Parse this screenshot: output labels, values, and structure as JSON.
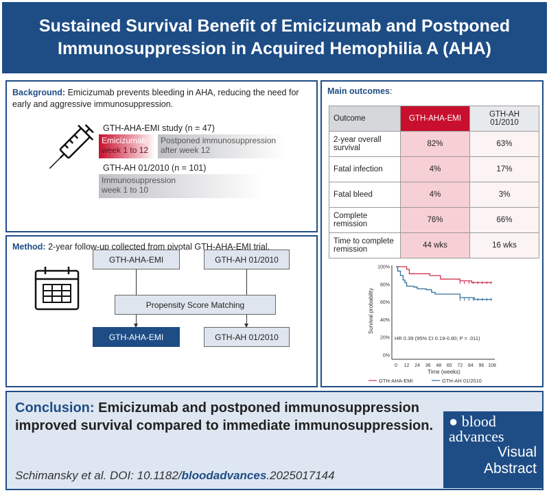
{
  "header": {
    "title": "Sustained Survival Benefit of Emicizumab and Postponed Immunosuppression in Acquired Hemophilia A (AHA)"
  },
  "background": {
    "label": "Background:",
    "text": " Emicizumab prevents bleeding in AHA, reducing the need for early and aggressive immunosuppression.",
    "icon": "syringe-icon",
    "study1": "GTH-AHA-EMI study (n = 47)",
    "bar1a": [
      "Emicizumab",
      "week 1 to 12"
    ],
    "bar1b": [
      "Postponed immunosuppression",
      "after week 12"
    ],
    "study2": "GTH-AH 01/2010 (n = 101)",
    "bar2": [
      "Immunosuppression",
      "week 1 to 10"
    ]
  },
  "method": {
    "label": "Method:",
    "text": " 2-year follow-up collected from pivotal GTH-AHA-EMI trial.",
    "icon": "calendar-icon",
    "box_emi": "GTH-AHA-EMI",
    "box_ah": "GTH-AH 01/2010",
    "box_psm": "Propensity Score Matching",
    "out_emi": "GTH-AHA-EMI",
    "out_ah": "GTH-AH 01/2010"
  },
  "outcomes": {
    "label": "Main outcomes",
    "colon": ":",
    "headers": [
      "Outcome",
      "GTH-AHA-EMI",
      "GTH-AH 01/2010"
    ],
    "rows": [
      [
        "2-year overall survival",
        "82%",
        "63%"
      ],
      [
        "Fatal infection",
        "4%",
        "17%"
      ],
      [
        "Fatal bleed",
        "4%",
        "3%"
      ],
      [
        "Complete remission",
        "76%",
        "66%"
      ],
      [
        "Time to complete remission",
        "44 wks",
        "16 wks"
      ]
    ]
  },
  "chart_data": {
    "type": "line",
    "xlabel": "Time (weeks)",
    "ylabel": "Survival probability",
    "xticks": [
      0,
      12,
      24,
      36,
      48,
      60,
      72,
      84,
      96,
      108
    ],
    "yticks": [
      "0%",
      "20%",
      "40%",
      "60%",
      "80%",
      "100%"
    ],
    "xlim": [
      0,
      108
    ],
    "ylim": [
      0,
      100
    ],
    "annotation": "HR 0.39 (95% CI 0.19-0.80; P = .011)",
    "legend": "bottom",
    "series": [
      {
        "name": "GTH-AHA-EMI",
        "color": "#d0314d",
        "x": [
          0,
          10,
          12,
          15,
          36,
          38,
          47,
          50,
          70,
          72,
          84,
          85,
          108
        ],
        "y": [
          100,
          100,
          97,
          92,
          92,
          90,
          90,
          86,
          86,
          84,
          84,
          82,
          82
        ]
      },
      {
        "name": "GTH-AH 01/2010",
        "color": "#2d6d9a",
        "x": [
          0,
          2,
          5,
          8,
          10,
          12,
          20,
          24,
          34,
          40,
          44,
          68,
          72,
          84,
          88,
          108
        ],
        "y": [
          100,
          95,
          90,
          85,
          82,
          78,
          77,
          75,
          74,
          71,
          69,
          69,
          65,
          65,
          63,
          63
        ]
      }
    ]
  },
  "conclusion": {
    "label": "Conclusion:",
    "text": " Emicizumab and postponed immunosuppression improved survival compared to immediate immunosuppression.",
    "citation_pre": "Schimansky et al. DOI: 10.1182/",
    "citation_bold": "bloodadvances",
    "citation_post": ".2025017144"
  },
  "logo": {
    "line1": "blood",
    "line2": "advances",
    "line3": "Visual",
    "line4": "Abstract"
  },
  "colors": {
    "brand": "#1e4d86",
    "emi": "#c8102e",
    "gray": "#c5c6ca"
  }
}
